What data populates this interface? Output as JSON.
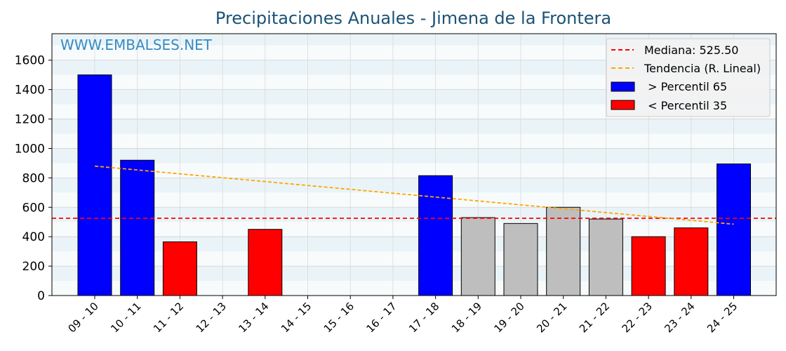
{
  "chart_data": {
    "type": "bar",
    "title": "Precipitaciones Anuales - Jimena de la Frontera",
    "watermark": "WWW.EMBALSES.NET",
    "xlabel": "",
    "ylabel": "",
    "ylim": [
      0,
      1780
    ],
    "yticks": [
      0,
      200,
      400,
      600,
      800,
      1000,
      1200,
      1400,
      1600
    ],
    "categories": [
      "09 - 10",
      "10 - 11",
      "11 - 12",
      "12 - 13",
      "13 - 14",
      "14 - 15",
      "15 - 16",
      "16 - 17",
      "17 - 18",
      "18 - 19",
      "19 - 20",
      "20 - 21",
      "21 - 22",
      "22 - 23",
      "23 - 24",
      "24 - 25"
    ],
    "values": [
      1500,
      920,
      365,
      0,
      450,
      0,
      0,
      0,
      815,
      530,
      490,
      600,
      520,
      400,
      460,
      895
    ],
    "bar_class": [
      "high",
      "high",
      "low",
      "none",
      "low",
      "none",
      "none",
      "none",
      "high",
      "mid",
      "mid",
      "mid",
      "mid",
      "low",
      "low",
      "high"
    ],
    "colors": {
      "high": "#0000ff",
      "low": "#ff0000",
      "mid": "#bebebe",
      "median": "#ff0000",
      "trend": "#ffa500",
      "band": "#eaf4f8",
      "title": "#1a5276",
      "watermark": "#2e86c1"
    },
    "median": 525.5,
    "trend": {
      "start": 880,
      "end": 485
    },
    "legend": {
      "position": "top-right",
      "items": [
        {
          "label": "Mediana: 525.50",
          "kind": "median"
        },
        {
          "label": "Tendencia (R. Lineal)",
          "kind": "trend"
        },
        {
          "label": " > Percentil 65",
          "kind": "high"
        },
        {
          "label": " < Percentil 35",
          "kind": "low"
        }
      ]
    },
    "grid": true
  }
}
